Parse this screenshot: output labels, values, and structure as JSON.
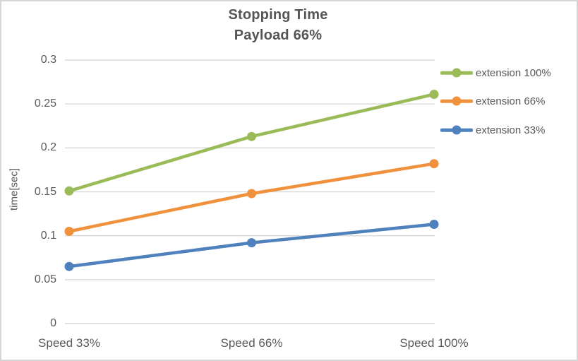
{
  "chart_data": {
    "type": "line",
    "title_lines": [
      "Stopping Time",
      "Payload 66%"
    ],
    "categories": [
      "Speed 33%",
      "Speed 66%",
      "Speed 100%"
    ],
    "series": [
      {
        "name": "extension 100%",
        "color": "#9BBB59",
        "values": [
          0.151,
          0.213,
          0.261
        ]
      },
      {
        "name": "extension 66%",
        "color": "#F0913D",
        "values": [
          0.105,
          0.148,
          0.182
        ]
      },
      {
        "name": "extension 33%",
        "color": "#4F81BD",
        "values": [
          0.065,
          0.092,
          0.113
        ]
      }
    ],
    "xlabel": "",
    "ylabel": "time[sec]",
    "ylim": [
      0,
      0.3
    ],
    "ytick_step": 0.05,
    "yticks": [
      "0",
      "0.05",
      "0.1",
      "0.15",
      "0.2",
      "0.25",
      "0.3"
    ],
    "grid": "horizontal-only",
    "legend_position": "right",
    "marker": "circle"
  },
  "style": {
    "gridline_color": "#D9D9D9",
    "axis_text_color": "#595959",
    "title_color": "#555555",
    "background": "#FFFFFF",
    "frame_border_color": "#D6D6D6"
  }
}
